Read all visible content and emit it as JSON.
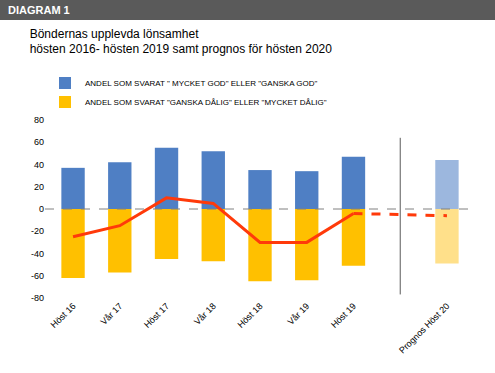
{
  "header": "DIAGRAM 1",
  "chart_data": {
    "type": "bar",
    "title": "Böndernas upplevda lönsamhet",
    "subtitle": "hösten 2016- hösten 2019 samt prognos för hösten 2020",
    "categories": [
      "Höst 16",
      "Vår 17",
      "Höst 17",
      "Vår 18",
      "Höst 18",
      "Vår 19",
      "Höst 19",
      null,
      "Prognos Höst 20"
    ],
    "series": [
      {
        "name": "ANDEL SOM SVARAT \" MYCKET GOD\" ELLER \"GANSKA GOD\"",
        "type": "bar",
        "color": "#4f7fc4",
        "colors": [
          "#4f7fc4",
          "#4f7fc4",
          "#4f7fc4",
          "#4f7fc4",
          "#4f7fc4",
          "#4f7fc4",
          "#4f7fc4",
          null,
          "#9cb7de"
        ],
        "values": [
          37,
          42,
          55,
          52,
          35,
          34,
          47,
          null,
          44
        ]
      },
      {
        "name": "ANDEL SOM SVARAT \"GANSKA DÅLIG\" ELLER \"MYCKET DÅLIG\"",
        "type": "bar",
        "color": "#ffc000",
        "colors": [
          "#ffc000",
          "#ffc000",
          "#ffc000",
          "#ffc000",
          "#ffc000",
          "#ffc000",
          "#ffc000",
          null,
          "#ffe08a"
        ],
        "values": [
          -62,
          -57,
          -45,
          -47,
          -65,
          -64,
          -51,
          null,
          -49
        ]
      },
      {
        "type": "line",
        "color": "#ff3a0a",
        "line_style": "solid",
        "values": [
          -25,
          -15,
          10,
          5,
          -30,
          -30,
          -4,
          null,
          null
        ]
      },
      {
        "type": "line",
        "color": "#ff3a0a",
        "line_style": "dashed",
        "values": [
          null,
          null,
          null,
          null,
          null,
          null,
          -4,
          null,
          -6
        ]
      }
    ],
    "ylim": [
      -80,
      80
    ],
    "yticks": [
      -80,
      -60,
      -40,
      -20,
      0,
      20,
      40,
      60,
      80
    ],
    "grid": false,
    "legend": "top left"
  }
}
